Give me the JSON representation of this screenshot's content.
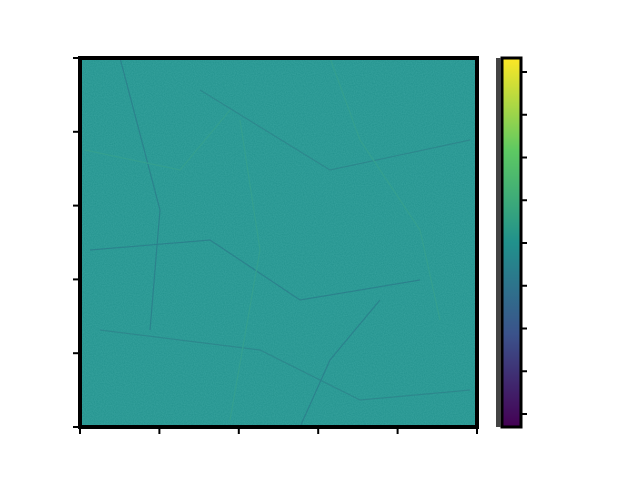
{
  "chart_data": {
    "type": "heatmap",
    "title": "",
    "xlabel": "",
    "ylabel": "",
    "colorbar_label": "",
    "x_ticks": [
      "",
      "",
      "",
      "",
      "",
      ""
    ],
    "y_ticks": [
      "",
      "",
      "",
      "",
      "",
      ""
    ],
    "y_offset_text": "",
    "colorbar_ticks": [
      "",
      "",
      "",
      "",
      "",
      "",
      "",
      "",
      ""
    ],
    "colormap": "viridis",
    "field_color": "#21918c",
    "colormap_stops": [
      "#440154",
      "#3b528b",
      "#21918c",
      "#5ec962",
      "#fde725"
    ]
  }
}
